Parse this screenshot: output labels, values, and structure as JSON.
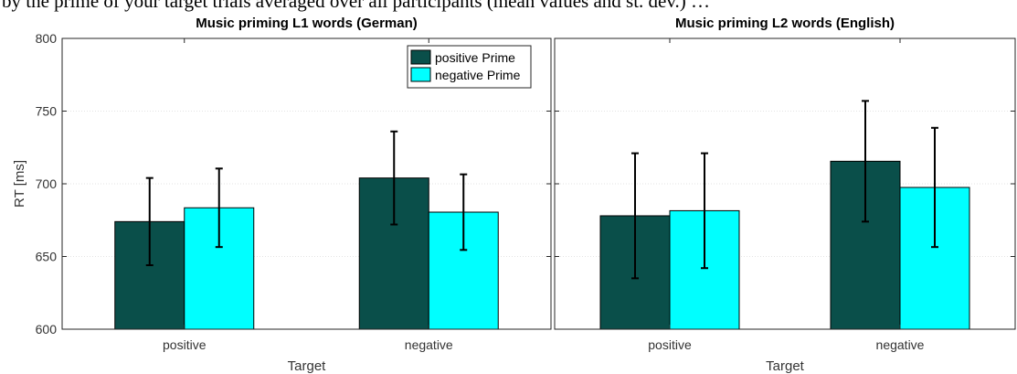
{
  "caption_fragment": "by the prime of your target trials averaged over all participants (mean values and st. dev.) …",
  "chart_data": [
    {
      "type": "bar",
      "title": "Music priming L1 words (German)",
      "xlabel": "Target",
      "ylabel": "RT [ms]",
      "ylim": [
        600,
        800
      ],
      "yticks": [
        600,
        650,
        700,
        750,
        800
      ],
      "categories": [
        "positive",
        "negative"
      ],
      "grid": true,
      "legend_placement": "top-right",
      "series": [
        {
          "name": "positive Prime",
          "color": "#0a4f4a",
          "values": [
            674,
            704
          ],
          "error": [
            30,
            32
          ]
        },
        {
          "name": "negative Prime",
          "color": "#00ffff",
          "values": [
            683.5,
            680.5
          ],
          "error": [
            27,
            26
          ]
        }
      ]
    },
    {
      "type": "bar",
      "title": "Music priming L2 words (English)",
      "xlabel": "Target",
      "ylabel": "",
      "ylim": [
        600,
        800
      ],
      "yticks": [
        600,
        650,
        700,
        750,
        800
      ],
      "categories": [
        "positive",
        "negative"
      ],
      "grid": true,
      "series": [
        {
          "name": "positive Prime",
          "color": "#0a4f4a",
          "values": [
            678,
            715.5
          ],
          "error": [
            43,
            41.5
          ]
        },
        {
          "name": "negative Prime",
          "color": "#00ffff",
          "values": [
            681.5,
            697.5
          ],
          "error": [
            39.5,
            41
          ]
        }
      ]
    }
  ]
}
